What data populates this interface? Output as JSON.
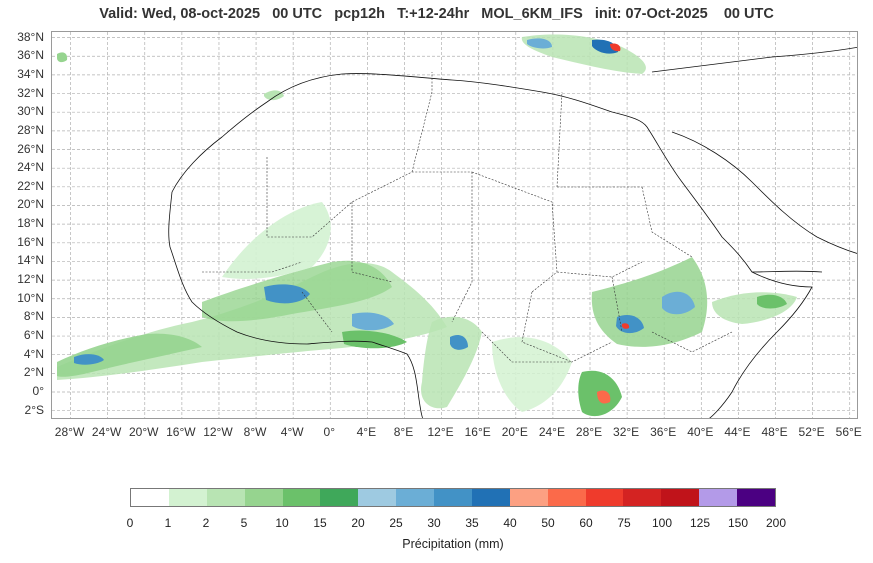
{
  "title": "Valid: Wed, 08-oct-2025   00 UTC   pcp12h   T:+12-24hr   MOL_6KM_IFS   init: 07-Oct-2025    00 UTC",
  "lat_labels": [
    "38°N",
    "36°N",
    "34°N",
    "32°N",
    "30°N",
    "28°N",
    "26°N",
    "24°N",
    "22°N",
    "20°N",
    "18°N",
    "16°N",
    "14°N",
    "12°N",
    "10°N",
    "8°N",
    "6°N",
    "4°N",
    "2°N",
    "0°",
    "2°S"
  ],
  "lon_labels": [
    "28°W",
    "24°W",
    "20°W",
    "16°W",
    "12°W",
    "8°W",
    "4°W",
    "0°",
    "4°E",
    "8°E",
    "12°E",
    "16°E",
    "20°E",
    "24°E",
    "28°E",
    "32°E",
    "36°E",
    "40°E",
    "44°E",
    "48°E",
    "52°E",
    "56°E"
  ],
  "colorbar": {
    "label": "Précipitation (mm)",
    "ticks": [
      "0",
      "1",
      "2",
      "5",
      "10",
      "15",
      "20",
      "25",
      "30",
      "35",
      "40",
      "50",
      "60",
      "75",
      "100",
      "125",
      "150",
      "200"
    ],
    "colors": [
      "#ffffff",
      "#d3f2d1",
      "#b8e4b3",
      "#96d48f",
      "#6bc16a",
      "#3fa85a",
      "#9ecae1",
      "#6baed6",
      "#4292c6",
      "#2171b5",
      "#fca082",
      "#fb6a4a",
      "#ef3b2c",
      "#d42322",
      "#c0131a",
      "#b39ae8",
      "#4b0082"
    ]
  }
}
